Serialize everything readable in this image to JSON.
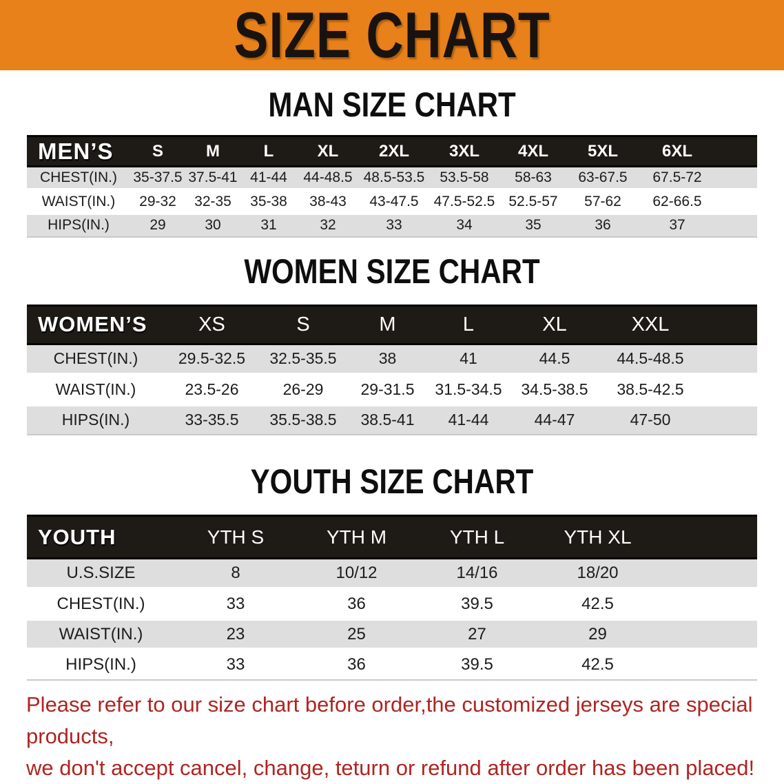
{
  "banner": {
    "title": "SIZE CHART",
    "background": "#E8811A",
    "text_color": "#181310"
  },
  "chart_data": [
    {
      "type": "table",
      "title": "MAN SIZE CHART",
      "corner": "MEN’S",
      "columns": [
        "S",
        "M",
        "L",
        "XL",
        "2XL",
        "3XL",
        "4XL",
        "5XL",
        "6XL"
      ],
      "rows": [
        {
          "label": "CHEST(IN.)",
          "values": [
            "35-37.5",
            "37.5-41",
            "41-44",
            "44-48.5",
            "48.5-53.5",
            "53.5-58",
            "58-63",
            "63-67.5",
            "67.5-72"
          ]
        },
        {
          "label": "WAIST(IN.)",
          "values": [
            "29-32",
            "32-35",
            "35-38",
            "38-43",
            "43-47.5",
            "47.5-52.5",
            "52.5-57",
            "57-62",
            "62-66.5"
          ]
        },
        {
          "label": "HIPS(IN.)",
          "values": [
            "29",
            "30",
            "31",
            "32",
            "33",
            "34",
            "35",
            "36",
            "37"
          ]
        }
      ]
    },
    {
      "type": "table",
      "title": "WOMEN SIZE CHART",
      "corner": "WOMEN’S",
      "columns": [
        "XS",
        "S",
        "M",
        "L",
        "XL",
        "XXL"
      ],
      "rows": [
        {
          "label": "CHEST(IN.)",
          "values": [
            "29.5-32.5",
            "32.5-35.5",
            "38",
            "41",
            "44.5",
            "44.5-48.5"
          ]
        },
        {
          "label": "WAIST(IN.)",
          "values": [
            "23.5-26",
            "26-29",
            "29-31.5",
            "31.5-34.5",
            "34.5-38.5",
            "38.5-42.5"
          ]
        },
        {
          "label": "HIPS(IN.)",
          "values": [
            "33-35.5",
            "35.5-38.5",
            "38.5-41",
            "41-44",
            "44-47",
            "47-50"
          ]
        }
      ]
    },
    {
      "type": "table",
      "title": "YOUTH SIZE CHART",
      "corner": "YOUTH",
      "columns": [
        "YTH S",
        "YTH M",
        "YTH L",
        "YTH XL"
      ],
      "rows": [
        {
          "label": "U.S.SIZE",
          "values": [
            "8",
            "10/12",
            "14/16",
            "18/20"
          ]
        },
        {
          "label": "CHEST(IN.)",
          "values": [
            "33",
            "36",
            "39.5",
            "42.5"
          ]
        },
        {
          "label": "WAIST(IN.)",
          "values": [
            "23",
            "25",
            "27",
            "29"
          ]
        },
        {
          "label": "HIPS(IN.)",
          "values": [
            "33",
            "36",
            "39.5",
            "42.5"
          ]
        }
      ]
    }
  ],
  "footer": {
    "line1": "Please refer to our size chart before order,the customized jerseys are special products,",
    "line2": "we don't accept cancel, change, teturn or refund after order has been placed!",
    "text_color": "#AE2522"
  },
  "colors": {
    "banner_orange": "#E8811A",
    "table_header_bg": "#1E1A16",
    "row_stripe_gray": "#DEDEDE",
    "body_text": "#1C1C1C"
  }
}
